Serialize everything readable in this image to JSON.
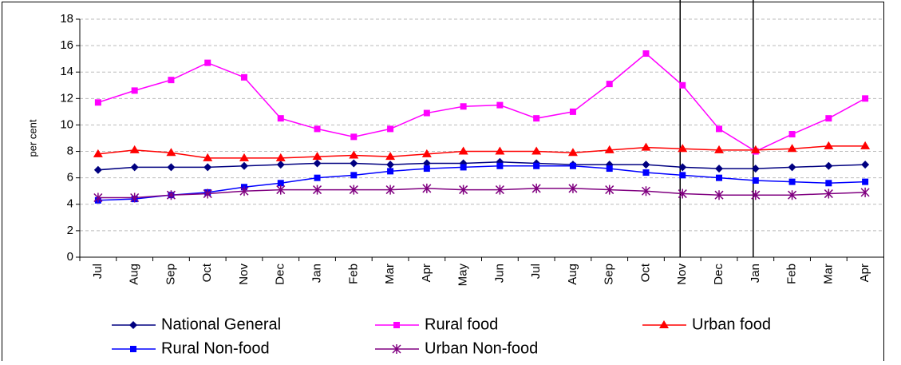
{
  "chart_data": {
    "type": "line",
    "y_label": "per cent",
    "categories": [
      "Jul",
      "Aug",
      "Sep",
      "Oct",
      "Nov",
      "Dec",
      "Jan",
      "Feb",
      "Mar",
      "Apr",
      "May",
      "Jun",
      "Jul",
      "Aug",
      "Sep",
      "Oct",
      "Nov",
      "Dec",
      "Jan",
      "Feb",
      "Mar",
      "Apr"
    ],
    "series": [
      {
        "name": "National General",
        "color": "#000080",
        "marker": "diamond",
        "values": [
          6.6,
          6.8,
          6.8,
          6.8,
          6.9,
          7.0,
          7.1,
          7.1,
          7.0,
          7.1,
          7.1,
          7.2,
          7.1,
          7.0,
          7.0,
          7.0,
          6.8,
          6.7,
          6.7,
          6.8,
          6.9,
          7.0
        ]
      },
      {
        "name": "Rural food",
        "color": "#ff00ff",
        "marker": "square",
        "values": [
          11.7,
          12.6,
          13.4,
          14.7,
          13.6,
          10.5,
          9.7,
          9.1,
          9.7,
          10.9,
          11.4,
          11.5,
          10.5,
          11.0,
          13.1,
          15.4,
          13.0,
          9.7,
          8.0,
          9.3,
          10.5,
          12.0
        ]
      },
      {
        "name": "Urban food",
        "color": "#ff0000",
        "marker": "triangle",
        "values": [
          7.8,
          8.1,
          7.9,
          7.5,
          7.5,
          7.5,
          7.6,
          7.7,
          7.6,
          7.8,
          8.0,
          8.0,
          8.0,
          7.9,
          8.1,
          8.3,
          8.2,
          8.1,
          8.1,
          8.2,
          8.4,
          8.4
        ]
      },
      {
        "name": "Rural Non-food",
        "color": "#0000ff",
        "marker": "square",
        "values": [
          4.3,
          4.4,
          4.7,
          4.9,
          5.3,
          5.6,
          6.0,
          6.2,
          6.5,
          6.7,
          6.8,
          6.9,
          6.9,
          6.9,
          6.7,
          6.4,
          6.2,
          6.0,
          5.8,
          5.7,
          5.6,
          5.7
        ]
      },
      {
        "name": "Urban Non-food",
        "color": "#800080",
        "marker": "star",
        "values": [
          4.5,
          4.5,
          4.7,
          4.8,
          5.0,
          5.1,
          5.1,
          5.1,
          5.1,
          5.2,
          5.1,
          5.1,
          5.2,
          5.2,
          5.1,
          5.0,
          4.8,
          4.7,
          4.7,
          4.7,
          4.8,
          4.9
        ]
      }
    ],
    "ylim": [
      0,
      18
    ],
    "yticks": [
      0,
      2,
      4,
      6,
      8,
      10,
      12,
      14,
      16,
      18
    ],
    "grid": true,
    "vertical_lines": [
      16,
      18
    ],
    "legend": "bottom"
  }
}
